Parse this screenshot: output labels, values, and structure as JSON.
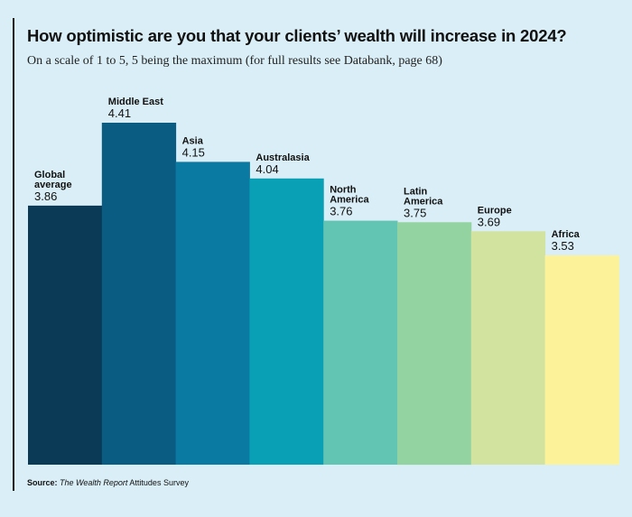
{
  "chart_data": {
    "type": "bar",
    "title": "How optimistic are you that your clients’ wealth will increase in 2024?",
    "subtitle": "On a scale of 1 to 5, 5 being the maximum (for full results see Databank, page 68)",
    "categories": [
      [
        "Global",
        "average"
      ],
      [
        "Middle East"
      ],
      [
        "Asia"
      ],
      [
        "Australasia"
      ],
      [
        "North",
        "America"
      ],
      [
        "Latin",
        "America"
      ],
      [
        "Europe"
      ],
      [
        "Africa"
      ]
    ],
    "values": [
      3.86,
      4.41,
      4.15,
      4.04,
      3.76,
      3.75,
      3.69,
      3.53
    ],
    "value_labels": [
      "3.86",
      "4.41",
      "4.15",
      "4.04",
      "3.76",
      "3.75",
      "3.69",
      "3.53"
    ],
    "colors": [
      "#0b3a56",
      "#0b5c83",
      "#0a7aa3",
      "#09a0b5",
      "#62c4b2",
      "#93d3a1",
      "#d2e3a0",
      "#fcf29a"
    ],
    "xlabel": "",
    "ylabel": "",
    "grid": false,
    "legend": "none"
  },
  "source": {
    "lead": "Source:",
    "publication": "The Wealth Report",
    "rest": "Attitudes Survey"
  }
}
